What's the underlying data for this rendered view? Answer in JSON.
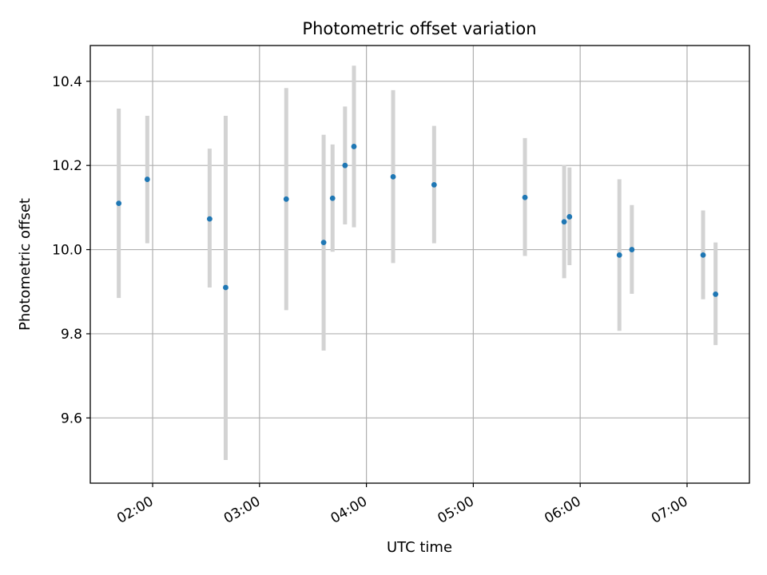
{
  "chart_data": {
    "type": "scatter",
    "title": "Photometric offset variation",
    "xlabel": "UTC time",
    "ylabel": "Photometric offset",
    "x_ticks": [
      "02:00",
      "03:00",
      "04:00",
      "05:00",
      "06:00",
      "07:00"
    ],
    "y_ticks": [
      "9.6",
      "9.8",
      "10.0",
      "10.2",
      "10.4"
    ],
    "xlim": [
      "01:25",
      "07:35"
    ],
    "ylim": [
      9.445,
      10.485
    ],
    "grid": true,
    "errorbar_color": "#d3d3d3",
    "marker_color": "#1f77b4",
    "series": [
      {
        "points": [
          {
            "time": "01:41",
            "y": 10.11,
            "lo": 9.885,
            "hi": 10.335
          },
          {
            "time": "01:57",
            "y": 10.167,
            "lo": 10.015,
            "hi": 10.318
          },
          {
            "time": "02:32",
            "y": 10.073,
            "lo": 9.91,
            "hi": 10.24
          },
          {
            "time": "02:41",
            "y": 9.91,
            "lo": 9.5,
            "hi": 10.318
          },
          {
            "time": "03:15",
            "y": 10.12,
            "lo": 9.856,
            "hi": 10.384
          },
          {
            "time": "03:36",
            "y": 10.017,
            "lo": 9.76,
            "hi": 10.273
          },
          {
            "time": "03:41",
            "y": 10.122,
            "lo": 9.995,
            "hi": 10.25
          },
          {
            "time": "03:48",
            "y": 10.2,
            "lo": 10.06,
            "hi": 10.34
          },
          {
            "time": "03:53",
            "y": 10.245,
            "lo": 10.053,
            "hi": 10.437
          },
          {
            "time": "04:15",
            "y": 10.173,
            "lo": 9.968,
            "hi": 10.379
          },
          {
            "time": "04:38",
            "y": 10.154,
            "lo": 10.015,
            "hi": 10.294
          },
          {
            "time": "05:29",
            "y": 10.124,
            "lo": 9.985,
            "hi": 10.265
          },
          {
            "time": "05:51",
            "y": 10.066,
            "lo": 9.932,
            "hi": 10.201
          },
          {
            "time": "05:54",
            "y": 10.078,
            "lo": 9.963,
            "hi": 10.195
          },
          {
            "time": "06:22",
            "y": 9.987,
            "lo": 9.807,
            "hi": 10.167
          },
          {
            "time": "06:29",
            "y": 10.0,
            "lo": 9.895,
            "hi": 10.106
          },
          {
            "time": "07:09",
            "y": 9.987,
            "lo": 9.882,
            "hi": 10.093
          },
          {
            "time": "07:16",
            "y": 9.894,
            "lo": 9.773,
            "hi": 10.017
          }
        ]
      }
    ]
  }
}
